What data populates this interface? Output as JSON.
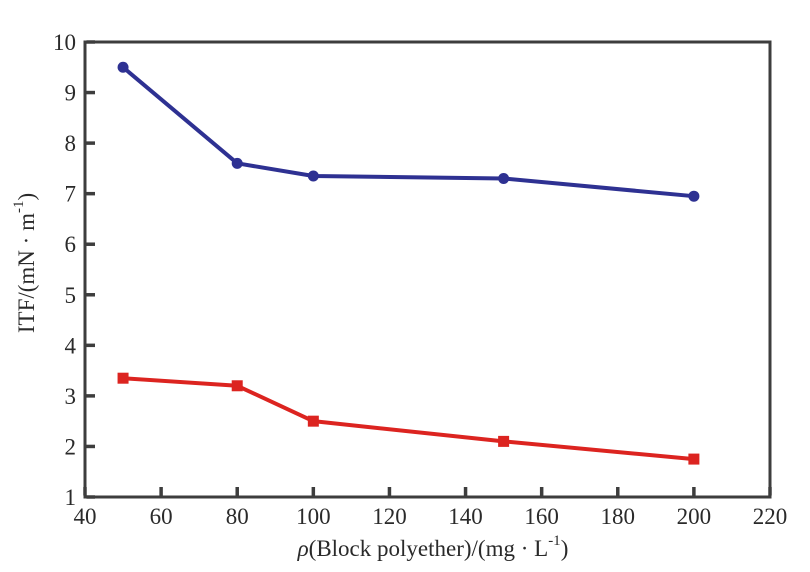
{
  "figure": {
    "background": "#ffffff"
  },
  "chart_data": {
    "type": "line",
    "title": "",
    "xlabel": "ρ(Block polyether)/(mg · L⁻¹)",
    "ylabel": "ITF/(mN · m⁻¹)",
    "xlabel_parts": [
      {
        "t": "ρ",
        "style": "italic"
      },
      {
        "t": "(Block polyether)/(mg · L",
        "style": "normal"
      },
      {
        "t": "-1",
        "style": "sup"
      },
      {
        "t": ")",
        "style": "normal"
      }
    ],
    "ylabel_parts": [
      {
        "t": "ITF/(mN · m",
        "style": "normal"
      },
      {
        "t": "-1",
        "style": "sup"
      },
      {
        "t": ")",
        "style": "normal"
      }
    ],
    "xlim": [
      40,
      220
    ],
    "ylim": [
      1,
      10
    ],
    "x_ticks": [
      40,
      60,
      80,
      100,
      120,
      140,
      160,
      180,
      200,
      220
    ],
    "y_ticks": [
      1,
      2,
      3,
      4,
      5,
      6,
      7,
      8,
      9,
      10
    ],
    "grid": false,
    "legend": "none",
    "axis_color": "#3d3d3d",
    "text_color": "#2a2a2a",
    "series": [
      {
        "name": "blue-series",
        "color": "#2e3192",
        "marker": "circle",
        "line_width": 4,
        "x": [
          50,
          80,
          100,
          150,
          200
        ],
        "y": [
          9.5,
          7.6,
          7.35,
          7.3,
          6.95
        ]
      },
      {
        "name": "red-series",
        "color": "#dc2420",
        "marker": "square",
        "line_width": 4,
        "x": [
          50,
          80,
          100,
          150,
          200
        ],
        "y": [
          3.35,
          3.2,
          2.5,
          2.1,
          1.75
        ]
      }
    ]
  }
}
